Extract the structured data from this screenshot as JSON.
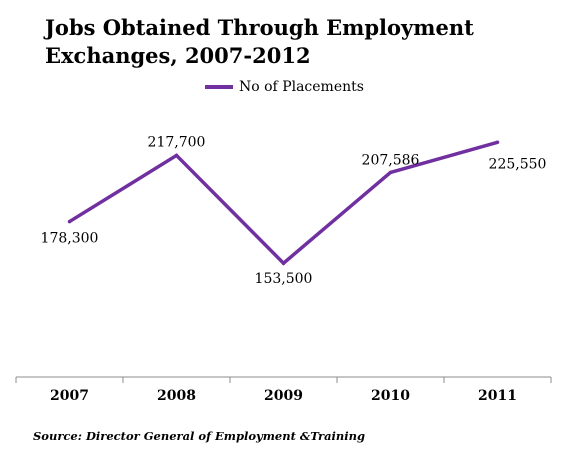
{
  "chart_data": {
    "type": "line",
    "title": "Jobs Obtained Through Employment Exchanges, 2007-2012",
    "categories": [
      "2007",
      "2008",
      "2009",
      "2010",
      "2011"
    ],
    "series": [
      {
        "name": "No of Placements",
        "values": [
          178300,
          217700,
          153500,
          207586,
          225550
        ],
        "labels": [
          "178,300",
          "217,700",
          "153,500",
          "207,586",
          "225,550"
        ],
        "color": "#7030a0"
      }
    ],
    "ylim": [
      100000,
      240000
    ],
    "grid": false,
    "legend_position": "top",
    "source": "Source: Director General of Employment &Training"
  }
}
